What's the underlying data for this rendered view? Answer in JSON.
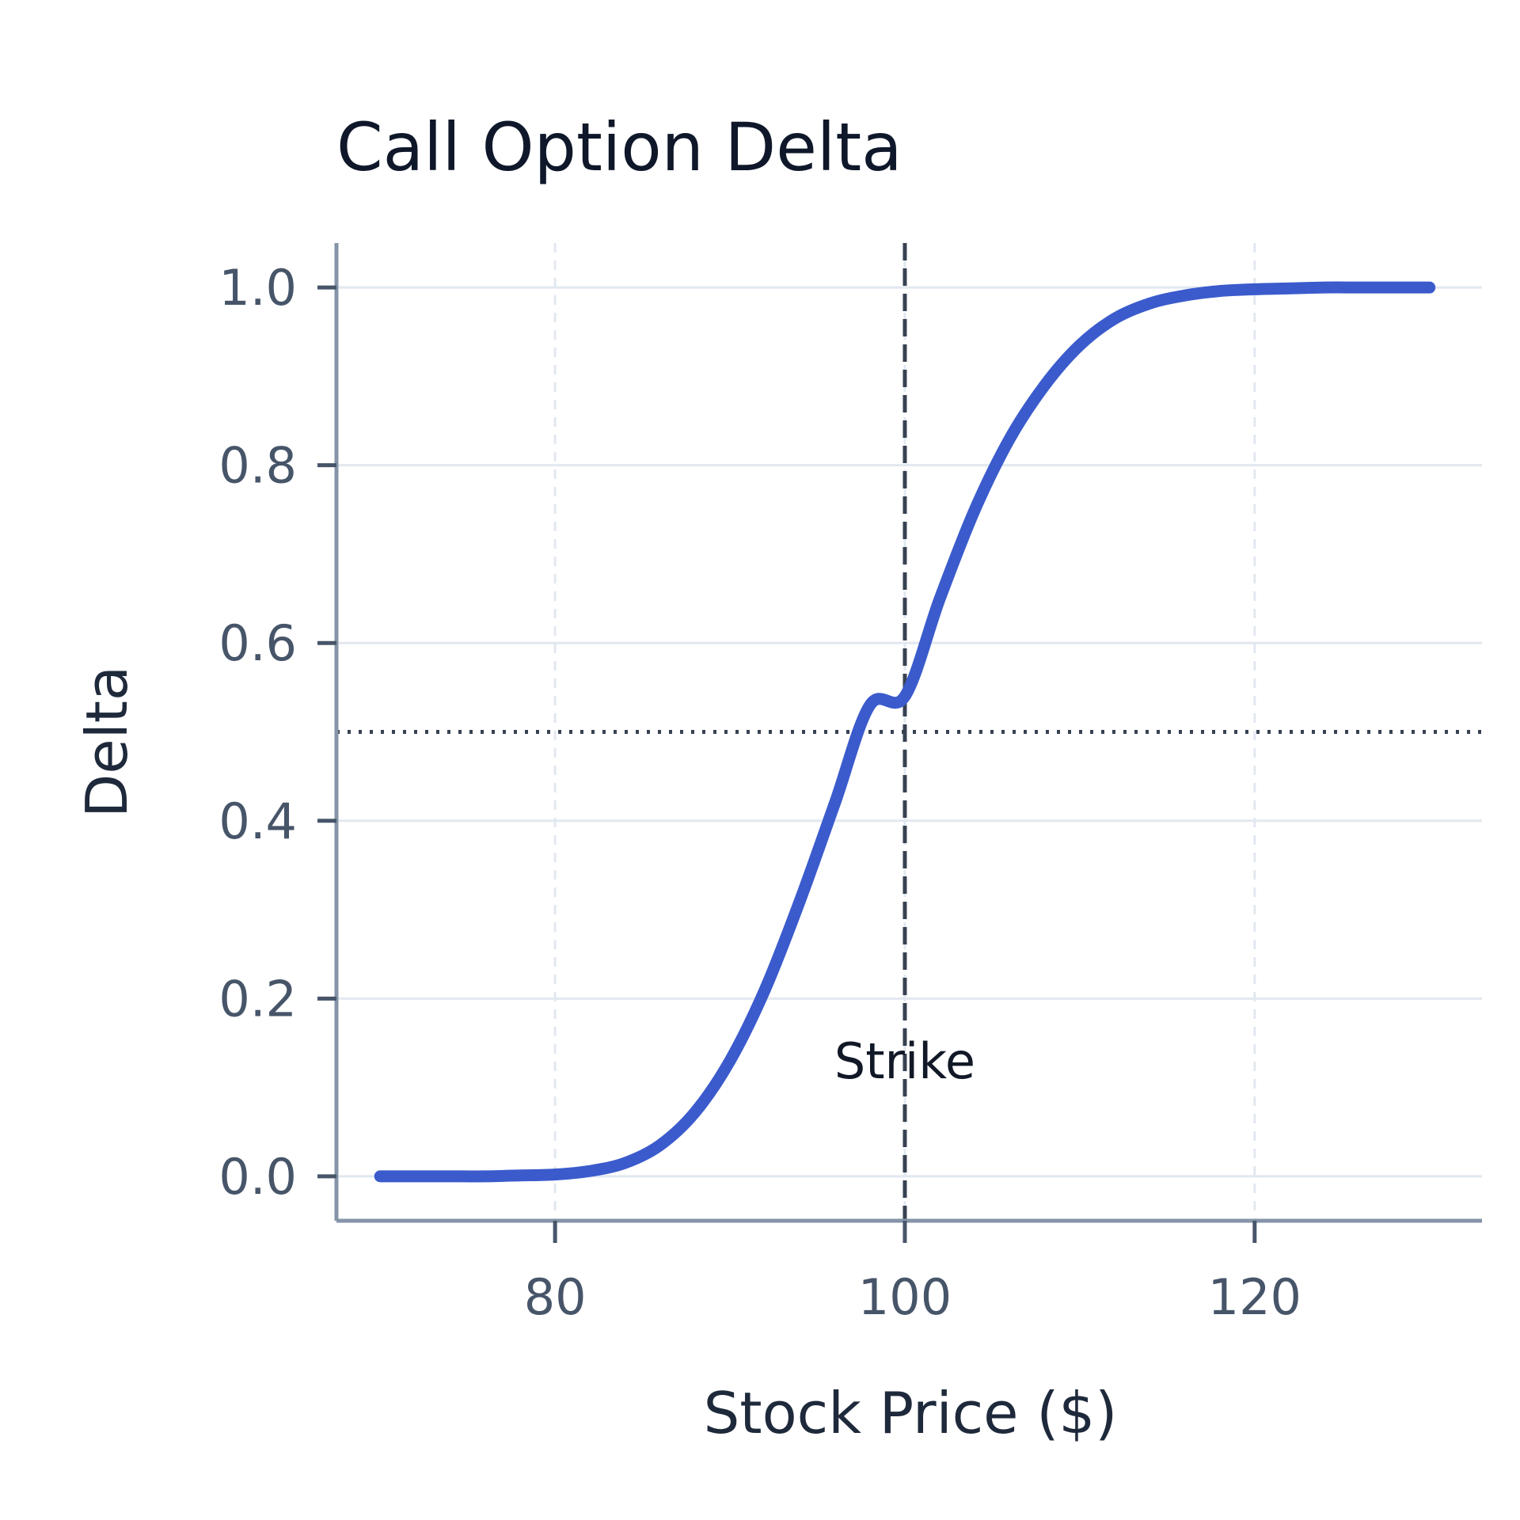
{
  "chart_data": {
    "type": "line",
    "title": "Call Option Delta",
    "xlabel": "Stock Price ($)",
    "ylabel": "Delta",
    "xlim": [
      67.5,
      133
    ],
    "ylim": [
      -0.05,
      1.05
    ],
    "xticks": [
      80,
      100,
      120
    ],
    "xtick_labels": [
      "80",
      "100",
      "120"
    ],
    "yticks": [
      0.0,
      0.2,
      0.4,
      0.6,
      0.8,
      1.0
    ],
    "ytick_labels": [
      "0.0",
      "0.2",
      "0.4",
      "0.6",
      "0.8",
      "1.0"
    ],
    "grid": true,
    "series": [
      {
        "x": [
          70,
          72,
          74,
          76,
          78,
          80,
          82,
          84,
          86,
          88,
          90,
          92,
          94,
          96,
          98,
          100,
          102,
          104,
          106,
          108,
          110,
          112,
          114,
          116,
          118,
          120,
          122,
          124,
          126,
          128,
          130
        ],
        "y": [
          0.0,
          0.0,
          0.0,
          0.0,
          0.001,
          0.002,
          0.006,
          0.015,
          0.035,
          0.072,
          0.13,
          0.21,
          0.31,
          0.42,
          0.53,
          0.54,
          0.65,
          0.75,
          0.83,
          0.89,
          0.935,
          0.965,
          0.982,
          0.991,
          0.996,
          0.998,
          0.999,
          1.0,
          1.0,
          1.0,
          1.0
        ],
        "color": "#3b5bcc"
      }
    ],
    "reference_lines": [
      {
        "orientation": "vertical",
        "value": 100,
        "style": "dashed",
        "color": "#374151"
      },
      {
        "orientation": "horizontal",
        "value": 0.5,
        "style": "dotted",
        "color": "#374151"
      }
    ],
    "annotations": [
      {
        "text": "Strike",
        "x": 100,
        "y": 0.13
      }
    ]
  }
}
